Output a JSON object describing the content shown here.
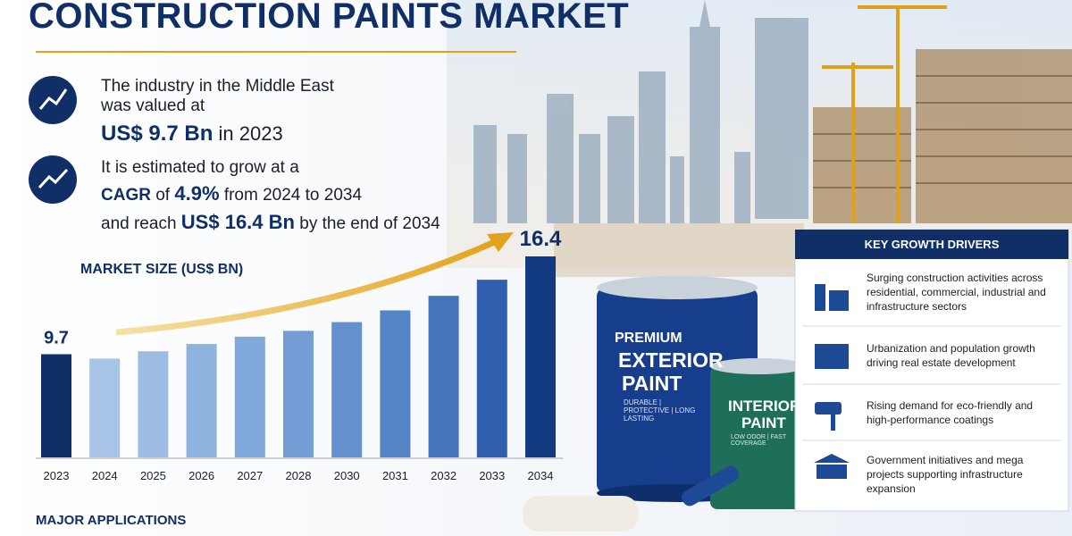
{
  "header": {
    "title": "CONSTRUCTION PAINTS MARKET"
  },
  "stats": {
    "valued_line1": "The industry in the Middle East",
    "valued_line2": "was valued at",
    "valued_amount": "US$ 9.7 Bn",
    "valued_year": "in 2023",
    "grow_line1": "It is estimated to grow at a",
    "cagr_label": "CAGR",
    "cagr_of": "of",
    "cagr_value": "4.9%",
    "cagr_period": "from 2024 to 2034",
    "reach_label": "and reach",
    "reach_amount": "US$ 16.4 Bn",
    "reach_period": "by the end of 2034"
  },
  "chart_data": {
    "type": "bar",
    "title": "MARKET SIZE (US$ BN)",
    "categories": [
      "2023",
      "2024",
      "2025",
      "2026",
      "2027",
      "2028",
      "2030",
      "2031",
      "2032",
      "2033",
      "2034"
    ],
    "values": [
      9.7,
      9.4,
      9.9,
      10.4,
      10.9,
      11.3,
      11.9,
      12.7,
      13.7,
      14.8,
      16.4
    ],
    "colors": [
      "#0f2f66",
      "#a8c5e8",
      "#9dbde4",
      "#8fb3df",
      "#81a8da",
      "#739dd4",
      "#6491cd",
      "#5584c4",
      "#4475bb",
      "#2f5fae",
      "#123a80"
    ]
  },
  "drivers": {
    "title": "KEY GROWTH DRIVERS",
    "items": [
      "Surging construction activities across residential, commercial, industrial and infrastructure sectors",
      "Urbanization and population growth driving real estate development",
      "Rising demand for eco-friendly and high-performance coatings",
      "Government initiatives and mega projects supporting infrastructure expansion"
    ]
  },
  "products": {
    "exterior_line1": "PREMIUM",
    "exterior_line2": "EXTERIOR",
    "exterior_line3": "PAINT",
    "exterior_tagline": "DURABLE | PROTECTIVE | LONG LASTING",
    "interior_line1": "INTERIOR",
    "interior_line2": "PAINT",
    "interior_tagline": "LOW ODOR | FAST COVERAGE"
  },
  "footer": {
    "section": "MAJOR APPLICATIONS"
  }
}
